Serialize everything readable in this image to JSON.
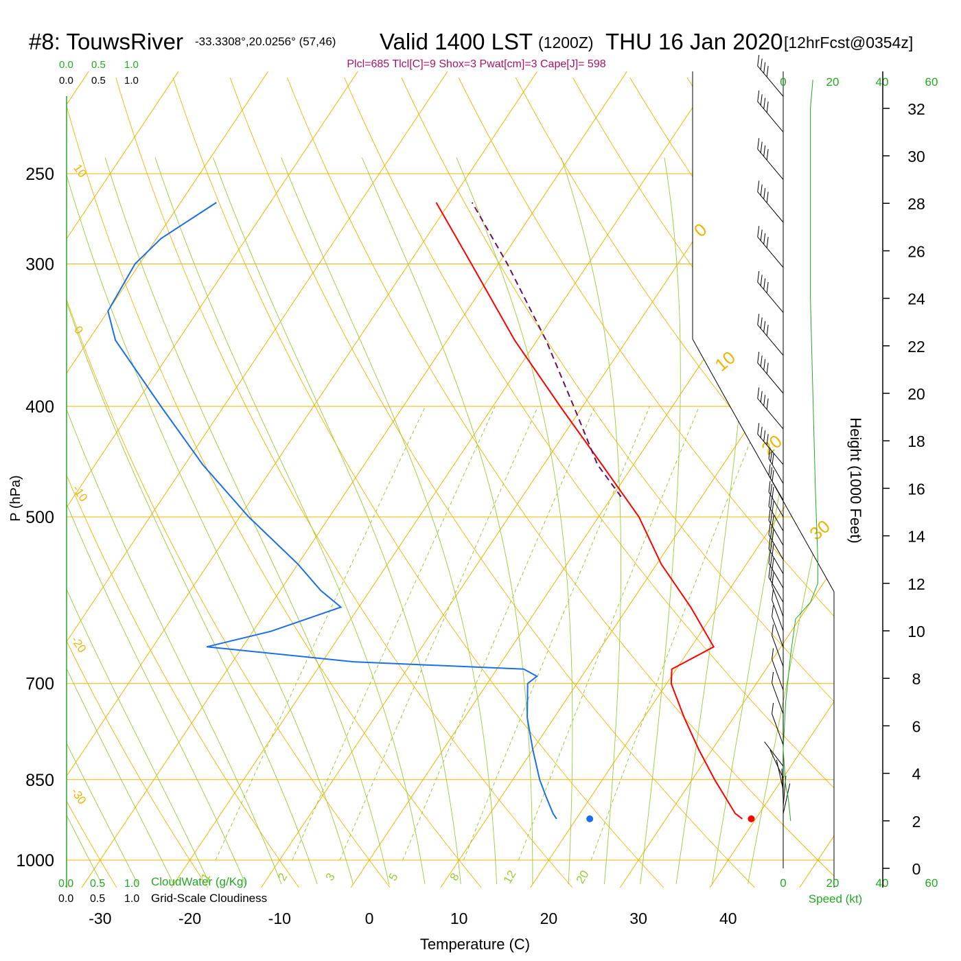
{
  "header": {
    "station": "#8: TouwsRiver",
    "coords": "-33.3308°,20.0256° (57,46)",
    "valid_label": "Valid 1400 LST",
    "zulu": "(1200Z)",
    "date": "THU 16 Jan 2020",
    "forecast": "[12hrFcst@0354z]"
  },
  "indices": "Plcl=685 Tlcl[C]=9 Shox=3 Pwat[cm]=3 Cape[J]= 598",
  "colors": {
    "temperature": "#ff0000",
    "dewpoint": "#1a6ee8",
    "parcel": "#6a0d5a",
    "isotherm": "#f0b400",
    "dry_adiabat": "#f0b400",
    "moist_adiabat": "#99cc33",
    "mixing_ratio": "#99cc33",
    "green_text": "#22aa22",
    "indices_text": "#aa1166"
  },
  "labels": {
    "y_axis": "P (hPa)",
    "x_axis": "Temperature (C)",
    "height_axis": "Height (1000 Feet)",
    "cloud_water": "CloudWater (g/Kg)",
    "cloudiness": "Grid-Scale Cloudiness",
    "speed": "Speed (kt)",
    "scale_top_green": [
      "0.0",
      "0.5",
      "1.0"
    ],
    "scale_top_black": [
      "0.0",
      "0.5",
      "1.0"
    ],
    "scale_bottom_green": [
      "0.0",
      "0.5",
      "1.0"
    ],
    "scale_bottom_black": [
      "0.0",
      "0.5",
      "1.0"
    ]
  },
  "chart_data": {
    "type": "skew-t",
    "pressure_ticks": [
      250,
      300,
      400,
      500,
      700,
      850,
      1000
    ],
    "temperature_ticks": [
      -30,
      -20,
      -10,
      0,
      10,
      20,
      30,
      40
    ],
    "height_ticks_kft": [
      0,
      2,
      4,
      6,
      8,
      10,
      12,
      14,
      16,
      18,
      20,
      22,
      24,
      26,
      28,
      30,
      32
    ],
    "speed_ticks_top": [
      0,
      20,
      40,
      60
    ],
    "speed_ticks_bottom": [
      0,
      20,
      40,
      60
    ],
    "dry_adiabat_labels": [
      "10",
      "0",
      "-10",
      "-20",
      "-30"
    ],
    "moist_adiabat_labels": [
      "0",
      "10",
      "20",
      "30"
    ],
    "mixing_ratio_labels": [
      "1",
      "2",
      "3",
      "5",
      "8",
      "12",
      "20"
    ],
    "temperature_profile": [
      {
        "p": 920,
        "t": 38.5
      },
      {
        "p": 910,
        "t": 37.3
      },
      {
        "p": 850,
        "t": 32.5
      },
      {
        "p": 800,
        "t": 28.5
      },
      {
        "p": 750,
        "t": 24.5
      },
      {
        "p": 700,
        "t": 20.5
      },
      {
        "p": 680,
        "t": 19.5
      },
      {
        "p": 670,
        "t": 20.5
      },
      {
        "p": 650,
        "t": 22.5
      },
      {
        "p": 600,
        "t": 17.0
      },
      {
        "p": 550,
        "t": 10.5
      },
      {
        "p": 500,
        "t": 4.5
      },
      {
        "p": 450,
        "t": -3.5
      },
      {
        "p": 400,
        "t": -12.5
      },
      {
        "p": 350,
        "t": -22.5
      },
      {
        "p": 300,
        "t": -33.0
      },
      {
        "p": 265,
        "t": -41.5
      }
    ],
    "dewpoint_profile": [
      {
        "p": 920,
        "t": 17.8
      },
      {
        "p": 910,
        "t": 17.0
      },
      {
        "p": 880,
        "t": 15.0
      },
      {
        "p": 850,
        "t": 13.0
      },
      {
        "p": 800,
        "t": 10.0
      },
      {
        "p": 750,
        "t": 7.0
      },
      {
        "p": 700,
        "t": 4.5
      },
      {
        "p": 690,
        "t": 5.0
      },
      {
        "p": 680,
        "t": 3.0
      },
      {
        "p": 670,
        "t": -16.5
      },
      {
        "p": 650,
        "t": -34.0
      },
      {
        "p": 630,
        "t": -28.0
      },
      {
        "p": 600,
        "t": -22.0
      },
      {
        "p": 580,
        "t": -25.5
      },
      {
        "p": 550,
        "t": -30.0
      },
      {
        "p": 500,
        "t": -39.0
      },
      {
        "p": 450,
        "t": -48.0
      },
      {
        "p": 400,
        "t": -57.0
      },
      {
        "p": 350,
        "t": -67.0
      },
      {
        "p": 330,
        "t": -70.0
      },
      {
        "p": 300,
        "t": -70.5
      },
      {
        "p": 285,
        "t": -69.5
      },
      {
        "p": 265,
        "t": -66.0
      }
    ],
    "parcel_profile": [
      {
        "p": 480,
        "t": 1.0
      },
      {
        "p": 450,
        "t": -4.0
      },
      {
        "p": 400,
        "t": -11.0
      },
      {
        "p": 350,
        "t": -19.0
      },
      {
        "p": 300,
        "t": -29.0
      },
      {
        "p": 265,
        "t": -37.5
      }
    ],
    "surface_temperature": {
      "p": 920,
      "t": 39.5
    },
    "surface_dewpoint": {
      "p": 920,
      "t": 21.5
    },
    "wind_speed_profile": [
      {
        "kft": 2.0,
        "kt": 3
      },
      {
        "kft": 3.0,
        "kt": 2
      },
      {
        "kft": 3.5,
        "kt": 1
      },
      {
        "kft": 5.0,
        "kt": 0
      },
      {
        "kft": 7.0,
        "kt": 1
      },
      {
        "kft": 9.0,
        "kt": 3
      },
      {
        "kft": 10.5,
        "kt": 5
      },
      {
        "kft": 11.2,
        "kt": 11
      },
      {
        "kft": 12.0,
        "kt": 14
      },
      {
        "kft": 13.0,
        "kt": 14
      },
      {
        "kft": 16.0,
        "kt": 13
      },
      {
        "kft": 20.0,
        "kt": 12
      },
      {
        "kft": 24.0,
        "kt": 11
      },
      {
        "kft": 28.0,
        "kt": 11
      },
      {
        "kft": 32.0,
        "kt": 11
      },
      {
        "kft": 33.2,
        "kt": 12
      }
    ],
    "wind_barbs_kft": [
      2.3,
      2.6,
      2.9,
      3.3,
      3.8,
      4.3,
      5.2,
      6.5,
      7.5,
      8.5,
      9.3,
      10.0,
      10.6,
      11.2,
      11.8,
      12.4,
      13.0,
      13.6,
      14.2,
      14.8,
      15.5,
      16.2,
      17.0,
      18.5,
      20.0,
      21.6,
      23.4,
      25.3,
      27.2,
      29.0,
      31.0,
      32.5
    ]
  }
}
